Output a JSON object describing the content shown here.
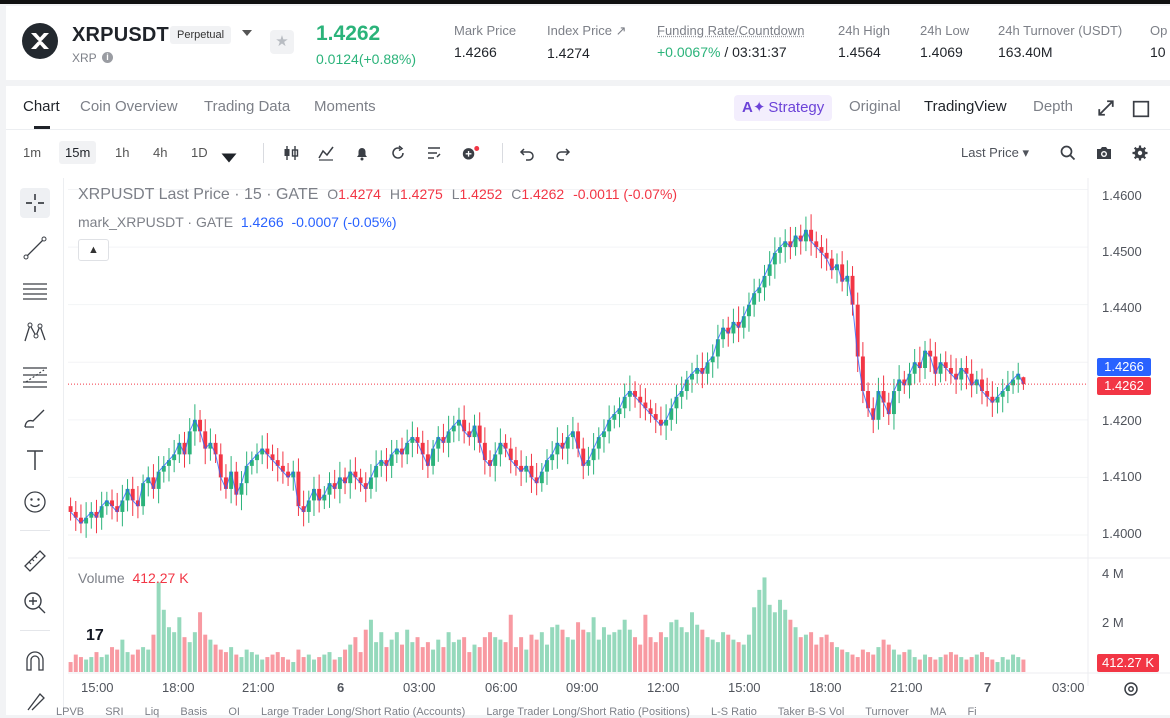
{
  "header": {
    "symbol": "XRPUSDT",
    "contract_type": "Perpetual",
    "coin": "XRP",
    "info_icon": "i",
    "fav_icon": "★",
    "last_price": "1.4262",
    "change": "0.0124(+0.88%)",
    "stats": [
      {
        "label": "Mark Price",
        "value": "1.4266"
      },
      {
        "label": "Index Price ↗",
        "value": "1.4274"
      },
      {
        "label": "Funding Rate/Countdown",
        "value_rate": "+0.0067%",
        "value_countdown": " / 03:31:37"
      },
      {
        "label": "24h High",
        "value": "1.4564"
      },
      {
        "label": "24h Low",
        "value": "1.4069"
      },
      {
        "label": "24h Turnover (USDT)",
        "value": "163.40M"
      },
      {
        "label": "Op",
        "value": "10"
      }
    ],
    "colors": {
      "up": "#2bb37a",
      "down": "#f23645"
    }
  },
  "tabs": {
    "left": [
      "Chart",
      "Coin Overview",
      "Trading Data",
      "Moments"
    ],
    "strategy_icon": "A✦",
    "strategy_label": "Strategy",
    "right": [
      "Original",
      "TradingView",
      "Depth"
    ],
    "active_left": "Chart",
    "active_right": "TradingView"
  },
  "toolbar": {
    "timeframes": [
      "1m",
      "15m",
      "1h",
      "4h",
      "1D"
    ],
    "active_timeframe": "15m",
    "price_type": "Last Price",
    "price_type_caret": "▾"
  },
  "chart": {
    "legend_main_title": "XRPUSDT Last Price · 15 · GATE",
    "o_label": "O",
    "o_value": "1.4274",
    "h_label": "H",
    "h_value": "1.4275",
    "l_label": "L",
    "l_value": "1.4252",
    "c_label": "C",
    "c_value": "1.4262",
    "change": "-0.0011 (-0.07%)",
    "legend_mark": "mark_XRPUSDT · GATE",
    "mark_value": "1.4266",
    "mark_change": "-0.0007 (-0.05%)",
    "collapse_icon": "▲",
    "volume_label": "Volume",
    "volume_value": "412.27 K",
    "mark_tag": "1.4266",
    "last_tag": "1.4262",
    "volume_tag": "412.27 K",
    "tv_logo": "17",
    "y_ticks": [
      "1.4600",
      "1.4500",
      "1.4400",
      "1.4300",
      "1.4200",
      "1.4100",
      "1.4000"
    ],
    "vol_ticks": [
      "4 M",
      "2 M"
    ],
    "x_ticks": [
      "15:00",
      "18:00",
      "21:00",
      "6",
      "03:00",
      "06:00",
      "09:00",
      "12:00",
      "15:00",
      "18:00",
      "21:00",
      "7",
      "03:00"
    ]
  },
  "indicators": [
    "LPVB",
    "SRI",
    "Liq",
    "Basis",
    "OI",
    "Large Trader Long/Short Ratio (Accounts)",
    "Large Trader Long/Short Ratio (Positions)",
    "L-S Ratio",
    "Taker B-S Vol",
    "Turnover",
    "MA",
    "Fi"
  ],
  "chart_data": {
    "type": "candlestick",
    "symbol": "XRPUSDT",
    "interval": "15m",
    "ylim": [
      1.396,
      1.462
    ],
    "volume_ylim": [
      0,
      4500000
    ],
    "last_close": 1.4262,
    "last_open": 1.4274,
    "last_high": 1.4275,
    "last_low": 1.4252,
    "mark_price": 1.4266,
    "series": [
      {
        "name": "XRPUSDT Last Price",
        "close": [
          1.404,
          1.403,
          1.402,
          1.403,
          1.404,
          1.403,
          1.405,
          1.406,
          1.405,
          1.404,
          1.406,
          1.408,
          1.406,
          1.405,
          1.409,
          1.41,
          1.408,
          1.411,
          1.412,
          1.413,
          1.414,
          1.416,
          1.414,
          1.418,
          1.42,
          1.418,
          1.415,
          1.416,
          1.414,
          1.41,
          1.408,
          1.411,
          1.407,
          1.409,
          1.412,
          1.413,
          1.414,
          1.415,
          1.414,
          1.413,
          1.412,
          1.411,
          1.41,
          1.411,
          1.405,
          1.404,
          1.406,
          1.408,
          1.406,
          1.407,
          1.409,
          1.408,
          1.41,
          1.409,
          1.411,
          1.41,
          1.409,
          1.408,
          1.41,
          1.412,
          1.413,
          1.412,
          1.414,
          1.415,
          1.414,
          1.416,
          1.417,
          1.416,
          1.414,
          1.412,
          1.415,
          1.417,
          1.416,
          1.418,
          1.419,
          1.42,
          1.418,
          1.417,
          1.419,
          1.416,
          1.413,
          1.412,
          1.414,
          1.416,
          1.415,
          1.413,
          1.412,
          1.411,
          1.412,
          1.41,
          1.409,
          1.411,
          1.413,
          1.414,
          1.416,
          1.415,
          1.417,
          1.418,
          1.415,
          1.412,
          1.413,
          1.415,
          1.417,
          1.418,
          1.42,
          1.421,
          1.422,
          1.424,
          1.425,
          1.424,
          1.423,
          1.422,
          1.421,
          1.42,
          1.419,
          1.42,
          1.422,
          1.424,
          1.425,
          1.427,
          1.428,
          1.429,
          1.428,
          1.43,
          1.431,
          1.434,
          1.436,
          1.435,
          1.437,
          1.436,
          1.438,
          1.44,
          1.442,
          1.443,
          1.445,
          1.447,
          1.449,
          1.45,
          1.451,
          1.45,
          1.452,
          1.451,
          1.453,
          1.451,
          1.45,
          1.449,
          1.448,
          1.446,
          1.447,
          1.444,
          1.445,
          1.44,
          1.431,
          1.425,
          1.422,
          1.42,
          1.425,
          1.423,
          1.421,
          1.425,
          1.427,
          1.426,
          1.428,
          1.43,
          1.429,
          1.432,
          1.431,
          1.428,
          1.43,
          1.429,
          1.428,
          1.427,
          1.429,
          1.428,
          1.426,
          1.427,
          1.425,
          1.424,
          1.423,
          1.424,
          1.425,
          1.426,
          1.427,
          1.428,
          1.4262
        ]
      },
      {
        "name": "mark_XRPUSDT",
        "value": 1.4266
      }
    ],
    "volume": [
      0.4,
      0.7,
      0.6,
      0.5,
      0.6,
      0.8,
      0.6,
      0.7,
      1.0,
      0.9,
      1.3,
      0.8,
      0.7,
      0.9,
      1.0,
      0.9,
      1.5,
      3.6,
      2.5,
      1.8,
      1.6,
      2.2,
      1.4,
      1.2,
      1.6,
      2.4,
      1.5,
      1.3,
      1.1,
      0.9,
      0.8,
      1.0,
      0.7,
      0.6,
      0.9,
      0.8,
      0.7,
      0.5,
      0.6,
      0.7,
      0.8,
      0.6,
      0.5,
      0.4,
      0.9,
      0.6,
      0.7,
      0.5,
      0.6,
      0.7,
      0.8,
      0.5,
      0.6,
      0.9,
      1.1,
      1.4,
      0.8,
      1.7,
      2.1,
      1.2,
      1.6,
      1.0,
      1.3,
      1.6,
      1.1,
      1.7,
      1.2,
      1.4,
      1.0,
      1.2,
      0.9,
      1.3,
      1.0,
      1.6,
      1.2,
      1.3,
      1.4,
      0.8,
      1.1,
      1.0,
      1.4,
      1.6,
      1.4,
      1.3,
      1.2,
      2.3,
      1.0,
      1.4,
      0.9,
      1.5,
      1.3,
      1.6,
      1.1,
      1.8,
      1.9,
      1.7,
      1.4,
      1.3,
      2.0,
      1.7,
      1.6,
      2.2,
      1.3,
      1.8,
      1.5,
      1.6,
      1.7,
      2.1,
      1.7,
      1.4,
      1.1,
      2.3,
      1.4,
      1.2,
      1.6,
      1.4,
      2.0,
      2.1,
      1.8,
      1.6,
      2.4,
      1.9,
      1.7,
      1.4,
      1.3,
      1.2,
      1.6,
      1.5,
      1.3,
      1.2,
      1.1,
      1.5,
      2.6,
      3.3,
      3.8,
      2.7,
      2.4,
      2.9,
      2.5,
      2.1,
      1.8,
      1.4,
      1.5,
      1.6,
      1.1,
      1.4,
      1.5,
      1.2,
      1.0,
      0.9,
      0.8,
      0.7,
      0.6,
      0.9,
      0.8,
      0.7,
      1.0,
      1.3,
      1.1,
      0.9,
      0.7,
      0.8,
      0.9,
      0.6,
      0.5,
      0.7,
      0.6,
      0.5,
      0.6,
      0.7,
      0.8,
      0.7,
      0.6,
      0.5,
      0.6,
      0.7,
      0.8,
      0.6,
      0.5,
      0.4,
      0.6,
      0.5,
      0.7,
      0.6,
      0.5,
      0.7,
      0.8,
      0.9,
      0.7,
      0.6,
      0.5,
      0.41
    ],
    "title": "XRPUSDT Last Price · 15 · GATE",
    "legend": "top-left",
    "grid": true
  }
}
